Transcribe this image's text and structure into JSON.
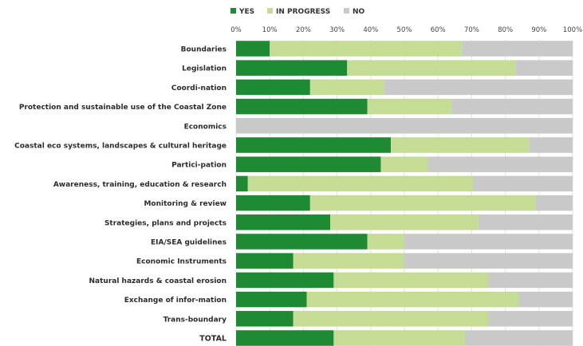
{
  "chart_data": {
    "type": "bar",
    "stacked": true,
    "orientation": "horizontal",
    "percent_axis": true,
    "xlim": [
      0,
      100
    ],
    "x_ticks": [
      "0%",
      "10%",
      "20%",
      "30%",
      "40%",
      "50%",
      "60%",
      "70%",
      "80%",
      "90%",
      "100%"
    ],
    "legend_position": "top",
    "grid": true,
    "categories": [
      "Boundaries",
      "Legislation",
      "Coordi-nation",
      "Protection and sustainable use of the Coastal Zone",
      "Economics",
      "Coastal eco systems, landscapes & cultural heritage",
      "Partici-pation",
      "Awareness, training, education & research",
      "Monitoring & review",
      "Strategies, plans and projects",
      "EIA/SEA guidelines",
      "Economic Instruments",
      "Natural hazards & coastal erosion",
      "Exchange of infor-mation",
      "Trans-boundary",
      "TOTAL"
    ],
    "series": [
      {
        "name": "YES",
        "color": "#1f8a34",
        "values": [
          10,
          33,
          22,
          39,
          0,
          46,
          43,
          3.5,
          22,
          28,
          39,
          17,
          29,
          21,
          17,
          29
        ]
      },
      {
        "name": "IN PROGRESS",
        "color": "#c4dc93",
        "values": [
          57,
          50,
          22,
          25,
          0,
          41,
          14,
          67,
          67,
          44,
          11,
          33,
          46,
          63,
          58,
          39
        ]
      },
      {
        "name": "NO",
        "color": "#c9c9c9",
        "values": [
          33,
          17,
          56,
          36,
          100,
          13,
          43,
          29.5,
          11,
          28,
          50,
          50,
          25,
          16,
          25,
          32
        ]
      }
    ]
  }
}
